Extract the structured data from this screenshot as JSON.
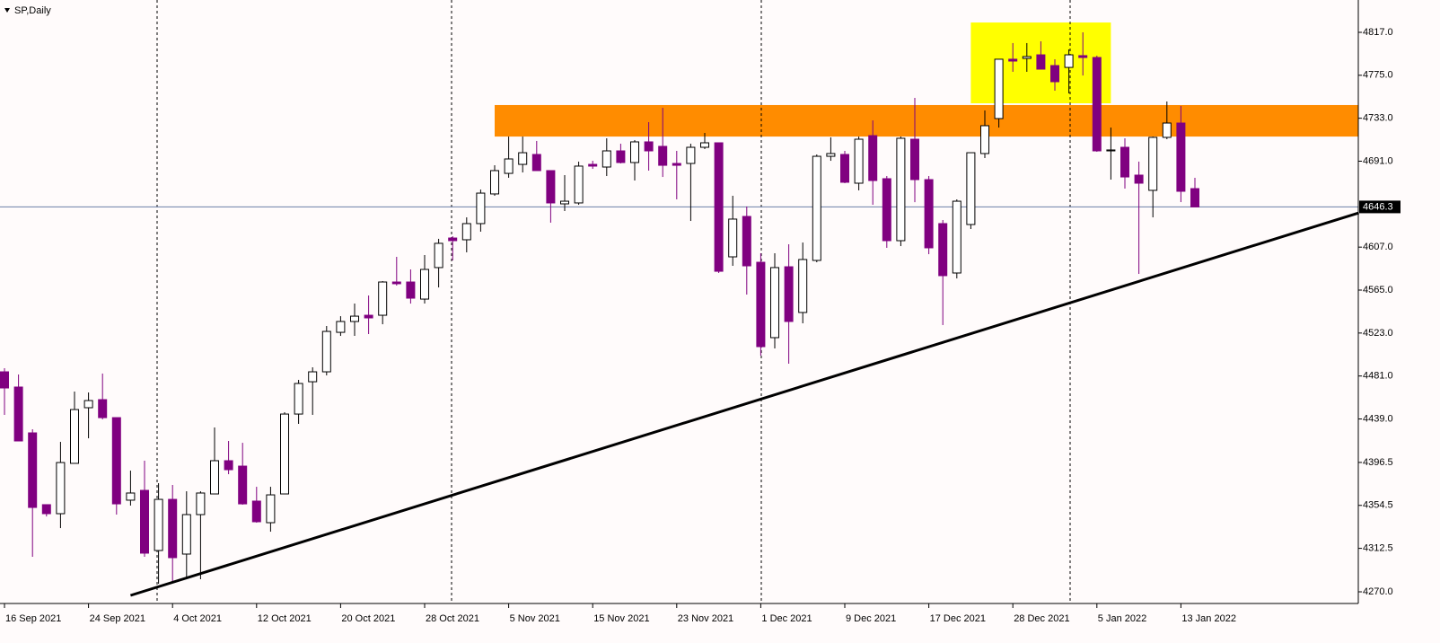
{
  "chart_data": {
    "type": "candlestick",
    "title": "SP,Daily",
    "categories": [
      "16 Sep 2021",
      null,
      null,
      null,
      null,
      null,
      "24 Sep 2021",
      null,
      null,
      null,
      null,
      null,
      "4 Oct 2021",
      null,
      null,
      null,
      null,
      null,
      "12 Oct 2021",
      null,
      null,
      null,
      null,
      null,
      "20 Oct 2021",
      null,
      null,
      null,
      null,
      null,
      "28 Oct 2021",
      null,
      null,
      null,
      null,
      null,
      "5 Nov 2021",
      null,
      null,
      null,
      null,
      null,
      "15 Nov 2021",
      null,
      null,
      null,
      null,
      null,
      "23 Nov 2021",
      null,
      null,
      null,
      null,
      null,
      "1 Dec 2021",
      null,
      null,
      null,
      null,
      null,
      "9 Dec 2021",
      null,
      null,
      null,
      null,
      null,
      "17 Dec 2021",
      null,
      null,
      null,
      null,
      null,
      "28 Dec 2021",
      null,
      null,
      null,
      null,
      null,
      "5 Jan 2022",
      null,
      null,
      null,
      null,
      null,
      "13 Jan 2022",
      null
    ],
    "open": [
      4485.1,
      4470.2,
      4425.4,
      4355.2,
      4346.4,
      4395.6,
      4450.0,
      4457.9,
      4440.3,
      4359.6,
      4369.2,
      4310.4,
      4360.4,
      4306.9,
      4345.5,
      4365.7,
      4398.2,
      4392.9,
      4358.7,
      4337.6,
      4365.7,
      4443.8,
      4475.4,
      4485.1,
      4523.7,
      4534.3,
      4540.4,
      4540.4,
      4572.9,
      4572.9,
      4556.2,
      4587.0,
      4615.9,
      4614.2,
      4630.0,
      4659.0,
      4679.1,
      4687.9,
      4697.6,
      4681.8,
      4649.3,
      4650.2,
      4687.9,
      4685.3,
      4701.1,
      4689.7,
      4709.9,
      4705.5,
      4688.8,
      4688.8,
      4704.6,
      4709.0,
      4597.5,
      4637.0,
      4592.2,
      4518.5,
      4587.8,
      4543.1,
      4594.0,
      4695.8,
      4697.6,
      4669.5,
      4716.0,
      4673.9,
      4613.3,
      4712.5,
      4673.0,
      4630.0,
      4581.7,
      4629.1,
      4698.5,
      4732.7,
      4790.7,
      4791.5,
      4795.0,
      4784.5,
      4782.7,
      4794.2,
      4792.4,
      4701.1,
      4704.6,
      4677.4,
      4662.5,
      4714.3,
      4728.3,
      4664.2
    ],
    "high": [
      4488.6,
      4482.5,
      4428.9,
      4355.2,
      4416.6,
      4465.8,
      4464.9,
      4483.4,
      4440.3,
      4388.5,
      4398.2,
      4376.2,
      4374.5,
      4368.3,
      4368.3,
      4430.7,
      4417.5,
      4415.7,
      4372.7,
      4372.7,
      4445.6,
      4477.2,
      4489.5,
      4529.9,
      4539.5,
      4551.8,
      4559.7,
      4573.8,
      4597.5,
      4585.2,
      4599.2,
      4615.1,
      4617.7,
      4636.1,
      4663.3,
      4687.0,
      4715.1,
      4715.1,
      4710.8,
      4681.8,
      4677.4,
      4690.6,
      4691.4,
      4713.4,
      4708.1,
      4711.6,
      4729.2,
      4743.2,
      4701.1,
      4708.1,
      4718.7,
      4709.0,
      4657.2,
      4646.7,
      4601.0,
      4601.0,
      4609.8,
      4611.5,
      4697.6,
      4714.3,
      4701.1,
      4715.1,
      4730.9,
      4676.5,
      4715.1,
      4752.9,
      4676.5,
      4633.5,
      4653.7,
      4699.3,
      4740.6,
      4790.7,
      4806.5,
      4806.5,
      4808.2,
      4790.7,
      4800.3,
      4817.0,
      4794.2,
      4723.9,
      4713.4,
      4690.6,
      4715.1,
      4749.4,
      4745.0,
      4674.8
    ],
    "low": [
      4443.0,
      4417.5,
      4304.2,
      4343.7,
      4332.3,
      4395.6,
      4420.1,
      4438.6,
      4345.5,
      4354.3,
      4304.2,
      4277.9,
      4279.7,
      4282.3,
      4282.3,
      4365.7,
      4385.0,
      4355.2,
      4337.6,
      4328.8,
      4365.7,
      4434.2,
      4443.0,
      4481.6,
      4520.2,
      4520.2,
      4522.0,
      4531.6,
      4569.4,
      4551.8,
      4551.8,
      4567.6,
      4594.0,
      4601.9,
      4622.1,
      4657.2,
      4674.8,
      4680.0,
      4681.8,
      4630.9,
      4642.3,
      4648.4,
      4683.5,
      4676.5,
      4688.8,
      4672.1,
      4681.8,
      4675.6,
      4653.7,
      4632.6,
      4702.9,
      4581.7,
      4588.7,
      4560.6,
      4500.9,
      4507.9,
      4493.0,
      4532.5,
      4592.2,
      4691.4,
      4669.5,
      4662.5,
      4648.4,
      4606.3,
      4608.0,
      4651.0,
      4600.1,
      4530.8,
      4576.4,
      4624.7,
      4694.1,
      4723.9,
      4778.4,
      4778.4,
      4781.0,
      4759.9,
      4757.3,
      4774.8,
      4700.2,
      4673.0,
      4664.2,
      4580.8,
      4636.1,
      4712.5,
      4651.0,
      4646.3
    ],
    "close": [
      4469.3,
      4417.5,
      4352.5,
      4346.4,
      4396.4,
      4448.2,
      4457.0,
      4440.3,
      4356.0,
      4366.6,
      4307.8,
      4360.4,
      4303.4,
      4345.5,
      4366.6,
      4398.2,
      4389.4,
      4356.0,
      4338.5,
      4364.8,
      4443.8,
      4473.7,
      4485.1,
      4524.6,
      4534.3,
      4539.5,
      4537.8,
      4572.9,
      4571.2,
      4557.1,
      4585.2,
      4610.7,
      4613.3,
      4630.0,
      4659.8,
      4681.8,
      4693.2,
      4699.3,
      4681.8,
      4650.2,
      4651.9,
      4686.2,
      4686.2,
      4701.1,
      4689.7,
      4709.9,
      4701.1,
      4687.0,
      4687.0,
      4704.6,
      4709.0,
      4583.4,
      4634.4,
      4588.7,
      4509.7,
      4587.0,
      4534.3,
      4594.9,
      4695.8,
      4698.5,
      4670.4,
      4712.5,
      4672.1,
      4613.3,
      4713.4,
      4673.0,
      4606.3,
      4579.1,
      4651.9,
      4699.3,
      4725.7,
      4790.7,
      4788.9,
      4793.3,
      4781.0,
      4768.7,
      4795.0,
      4792.4,
      4701.1,
      4702.0,
      4675.6,
      4669.5,
      4714.3,
      4728.3,
      4661.6,
      4646.3
    ],
    "up_color": "#ffffff",
    "down_color": "#800080",
    "outline_color": "#000000",
    "ylim": [
      4258.6,
      4848.6
    ],
    "yticks": [
      {
        "value": 4817,
        "label": "4817.0"
      },
      {
        "value": 4775,
        "label": "4775.0"
      },
      {
        "value": 4733,
        "label": "4733.0"
      },
      {
        "value": 4691,
        "label": "4691.0"
      },
      {
        "value": 4607,
        "label": "4607.0"
      },
      {
        "value": 4565,
        "label": "4565.0"
      },
      {
        "value": 4523,
        "label": "4523.0"
      },
      {
        "value": 4481,
        "label": "4481.0"
      },
      {
        "value": 4439,
        "label": "4439.0"
      },
      {
        "value": 4396.5,
        "label": "4396.5"
      },
      {
        "value": 4354.5,
        "label": "4354.5"
      },
      {
        "value": 4312.5,
        "label": "4312.5"
      },
      {
        "value": 4270,
        "label": "4270.0"
      }
    ],
    "last_price": 4646.3,
    "last_price_color": "#6b7fa8",
    "zones": [
      {
        "x": [
          35,
          96.67
        ],
        "y": [
          4715.1,
          4745.9
        ],
        "color": "#ff8c00"
      },
      {
        "x": [
          69,
          79
        ],
        "y": [
          4747.6,
          4826.6
        ],
        "color": "#ffff00"
      }
    ],
    "trendline": {
      "x": [
        9,
        96.7
      ],
      "y": [
        4266.5,
        4640.5
      ],
      "color": "#000000"
    }
  }
}
